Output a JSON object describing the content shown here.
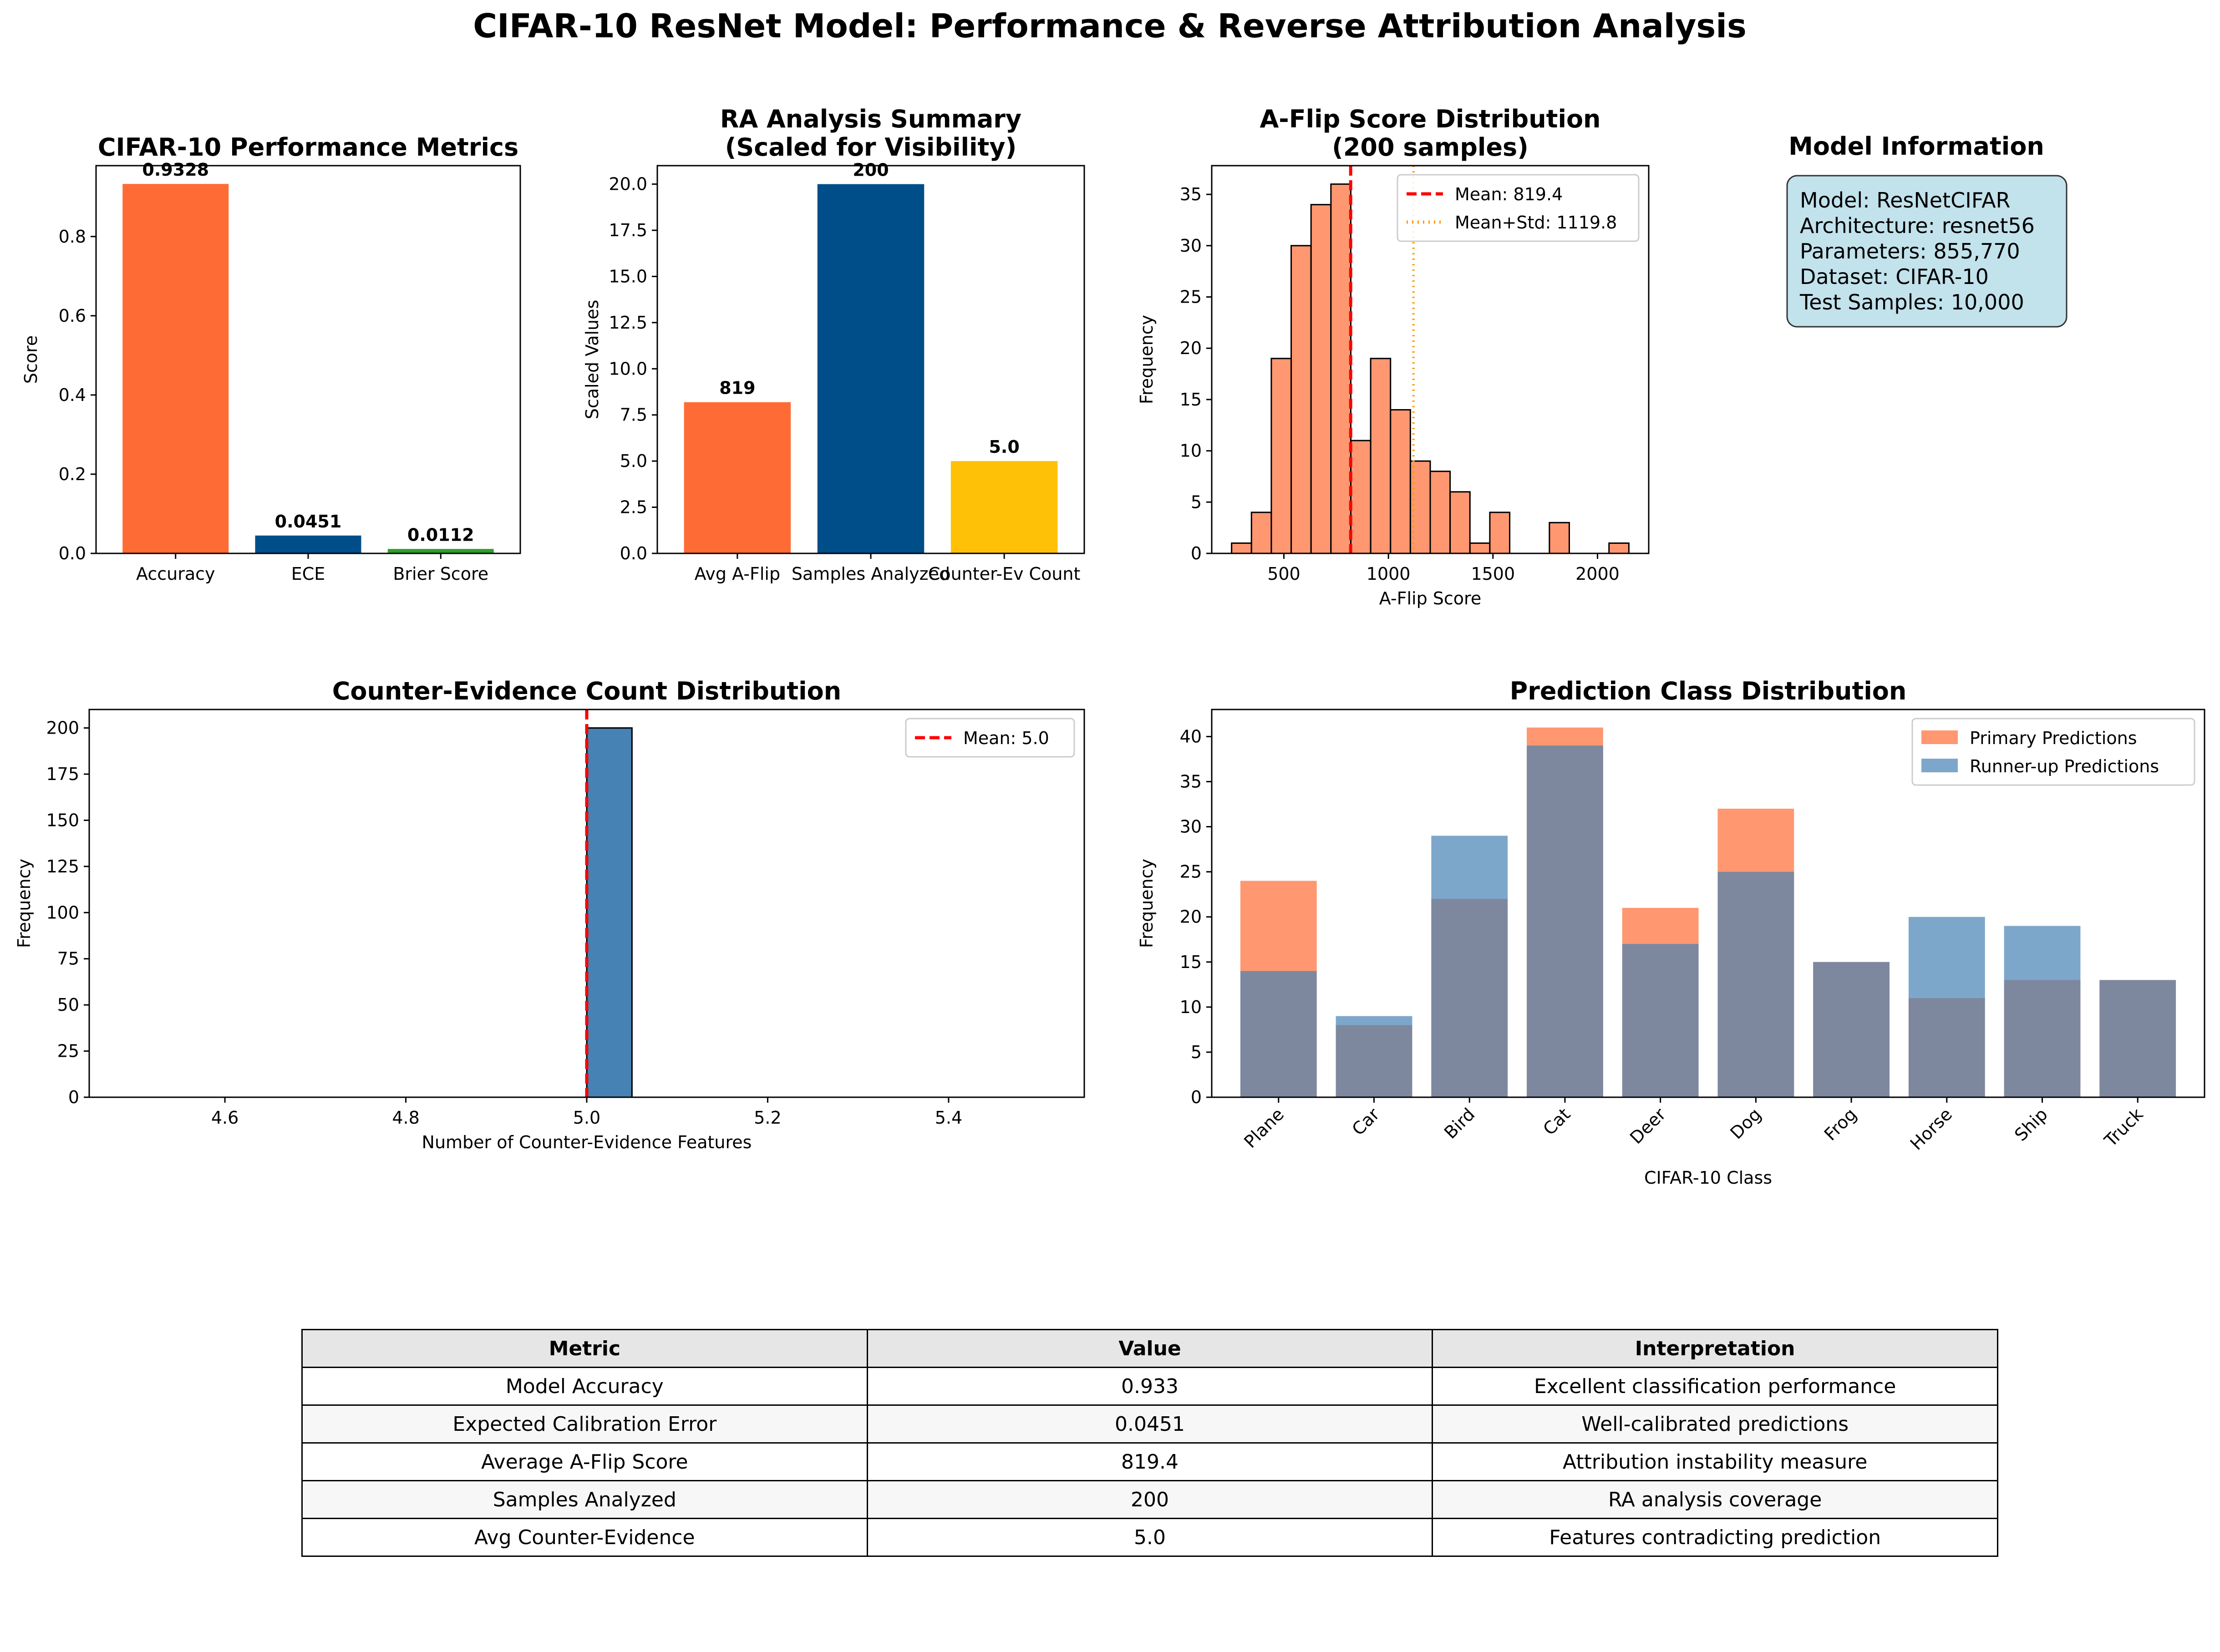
{
  "figure_title": "CIFAR-10 ResNet Model: Performance & Reverse Attribution Analysis",
  "chart_data": [
    {
      "type": "bar",
      "title": "CIFAR-10 Performance Metrics",
      "xlabel": "",
      "ylabel": "Score",
      "categories": [
        "Accuracy",
        "ECE",
        "Brier Score"
      ],
      "values": [
        0.9328,
        0.0451,
        0.0112
      ],
      "value_labels": [
        "0.9328",
        "0.0451",
        "0.0112"
      ],
      "colors": [
        "#ff6b35",
        "#004e89",
        "#2ca02c"
      ],
      "ylim": [
        0,
        0.979
      ],
      "yticks": [
        0.0,
        0.2,
        0.4,
        0.6,
        0.8
      ],
      "ytick_labels": [
        "0.0",
        "0.2",
        "0.4",
        "0.6",
        "0.8"
      ],
      "grid": false
    },
    {
      "type": "bar",
      "title": "RA Analysis Summary\n(Scaled for Visibility)",
      "xlabel": "",
      "ylabel": "Scaled Values",
      "categories": [
        "Avg A-Flip",
        "Samples Analyzed",
        "Counter-Ev Count"
      ],
      "values": [
        8.19,
        20.0,
        5.0
      ],
      "value_labels": [
        "819",
        "200",
        "5.0"
      ],
      "colors": [
        "#ff6b35",
        "#004e89",
        "#ffc107"
      ],
      "ylim": [
        0,
        21
      ],
      "yticks": [
        0.0,
        2.5,
        5.0,
        7.5,
        10.0,
        12.5,
        15.0,
        17.5,
        20.0
      ],
      "ytick_labels": [
        "0.0",
        "2.5",
        "5.0",
        "7.5",
        "10.0",
        "12.5",
        "15.0",
        "17.5",
        "20.0"
      ],
      "grid": false
    },
    {
      "type": "histogram",
      "title": "A-Flip Score Distribution\n(200 samples)",
      "xlabel": "A-Flip Score",
      "ylabel": "Frequency",
      "bin_edges": [
        250,
        345,
        440,
        535,
        630,
        725,
        820,
        915,
        1010,
        1105,
        1200,
        1295,
        1390,
        1485,
        1580,
        1675,
        1770,
        1865,
        1960,
        2055,
        2150
      ],
      "counts": [
        1,
        4,
        19,
        30,
        34,
        36,
        11,
        19,
        14,
        9,
        8,
        6,
        1,
        4,
        0,
        0,
        3,
        0,
        0,
        1
      ],
      "color": "#ff6b35",
      "xlim": [
        155,
        2245
      ],
      "ylim": [
        0,
        37.8
      ],
      "xticks": [
        500,
        1000,
        1500,
        2000
      ],
      "yticks": [
        0,
        5,
        10,
        15,
        20,
        25,
        30,
        35
      ],
      "lines": [
        {
          "x": 819.4,
          "label": "Mean: 819.4",
          "color": "#ff0000",
          "style": "dashed"
        },
        {
          "x": 1119.8,
          "label": "Mean+Std: 1119.8",
          "color": "#ff9900",
          "style": "dotted"
        }
      ],
      "legend": "top-right"
    },
    {
      "type": "histogram",
      "title": "Counter-Evidence Count Distribution",
      "xlabel": "Number of Counter-Evidence Features",
      "ylabel": "Frequency",
      "bin_edges": [
        4.5,
        4.55,
        4.6,
        4.65,
        4.7,
        4.75,
        4.8,
        4.85,
        4.9,
        4.95,
        5.0,
        5.05,
        5.1,
        5.15,
        5.2,
        5.25,
        5.3,
        5.35,
        5.4,
        5.45,
        5.5
      ],
      "counts": [
        0,
        0,
        0,
        0,
        0,
        0,
        0,
        0,
        0,
        0,
        200,
        0,
        0,
        0,
        0,
        0,
        0,
        0,
        0,
        0
      ],
      "counts_comment": "",
      "color": "#4682b4",
      "xlim": [
        4.45,
        5.55
      ],
      "ylim": [
        0,
        210
      ],
      "xticks": [
        4.6,
        4.8,
        5.0,
        5.2,
        5.4
      ],
      "yticks": [
        0,
        25,
        50,
        75,
        100,
        125,
        150,
        175,
        200
      ],
      "lines": [
        {
          "x": 5.0,
          "label": "Mean: 5.0",
          "color": "#ff0000",
          "style": "dashed"
        }
      ],
      "legend": "top-right"
    },
    {
      "type": "bar",
      "title": "Prediction Class Distribution",
      "xlabel": "CIFAR-10 Class",
      "ylabel": "Frequency",
      "categories": [
        "Plane",
        "Car",
        "Bird",
        "Cat",
        "Deer",
        "Dog",
        "Frog",
        "Horse",
        "Ship",
        "Truck"
      ],
      "series": [
        {
          "name": "Primary Predictions",
          "values": [
            24,
            8,
            22,
            41,
            21,
            32,
            15,
            11,
            13,
            13
          ],
          "color": "#ff6b35",
          "alpha": 0.7
        },
        {
          "name": "Runner-up Predictions",
          "values": [
            14,
            9,
            29,
            39,
            17,
            25,
            15,
            20,
            19,
            13
          ],
          "color": "#4682b4",
          "alpha": 0.7
        }
      ],
      "ylim": [
        0,
        43
      ],
      "yticks": [
        0,
        5,
        10,
        15,
        20,
        25,
        30,
        35,
        40
      ],
      "legend": "top-right",
      "grid": false
    }
  ],
  "model_info": {
    "title": "Model Information",
    "lines": [
      "Model: ResNetCIFAR",
      "Architecture: resnet56",
      "Parameters: 855,770",
      "Dataset: CIFAR-10",
      "Test Samples: 10,000"
    ],
    "box_color": "#add8e6"
  },
  "summary_table": {
    "headers": [
      "Metric",
      "Value",
      "Interpretation"
    ],
    "rows": [
      [
        "Model Accuracy",
        "0.933",
        "Excellent classification performance"
      ],
      [
        "Expected Calibration Error",
        "0.0451",
        "Well-calibrated predictions"
      ],
      [
        "Average A-Flip Score",
        "819.4",
        "Attribution instability measure"
      ],
      [
        "Samples Analyzed",
        "200",
        "RA analysis coverage"
      ],
      [
        "Avg Counter-Evidence",
        "5.0",
        "Features contradicting prediction"
      ]
    ]
  }
}
